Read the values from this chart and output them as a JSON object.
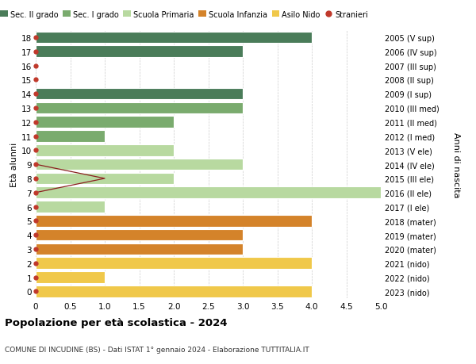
{
  "ages": [
    18,
    17,
    16,
    15,
    14,
    13,
    12,
    11,
    10,
    9,
    8,
    7,
    6,
    5,
    4,
    3,
    2,
    1,
    0
  ],
  "years_labels": [
    "2005 (V sup)",
    "2006 (IV sup)",
    "2007 (III sup)",
    "2008 (II sup)",
    "2009 (I sup)",
    "2010 (III med)",
    "2011 (II med)",
    "2012 (I med)",
    "2013 (V ele)",
    "2014 (IV ele)",
    "2015 (III ele)",
    "2016 (II ele)",
    "2017 (I ele)",
    "2018 (mater)",
    "2019 (mater)",
    "2020 (mater)",
    "2021 (nido)",
    "2022 (nido)",
    "2023 (nido)"
  ],
  "bar_values": [
    4,
    3,
    0,
    0,
    3,
    3,
    2,
    1,
    2,
    3,
    2,
    5.0,
    1,
    4,
    3,
    3,
    4,
    1,
    4
  ],
  "bar_colors": [
    "#4a7c59",
    "#4a7c59",
    "#4a7c59",
    "#4a7c59",
    "#4a7c59",
    "#7aab6e",
    "#7aab6e",
    "#7aab6e",
    "#b8d9a0",
    "#b8d9a0",
    "#b8d9a0",
    "#b8d9a0",
    "#b8d9a0",
    "#d4832a",
    "#d4832a",
    "#d4832a",
    "#f0c84a",
    "#f0c84a",
    "#f0c84a"
  ],
  "legend_labels": [
    "Sec. II grado",
    "Sec. I grado",
    "Scuola Primaria",
    "Scuola Infanzia",
    "Asilo Nido",
    "Stranieri"
  ],
  "legend_colors": [
    "#4a7c59",
    "#7aab6e",
    "#b8d9a0",
    "#d4832a",
    "#f0c84a",
    "#c0392b"
  ],
  "ylabel_left": "Età alunni",
  "ylabel_right": "Anni di nascita",
  "title": "Popolazione per età scolastica - 2024",
  "subtitle": "COMUNE DI INCUDINE (BS) - Dati ISTAT 1° gennaio 2024 - Elaborazione TUTTITALIA.IT",
  "xlim": [
    0,
    5.0
  ],
  "xticks": [
    0,
    0.5,
    1.0,
    1.5,
    2.0,
    2.5,
    3.0,
    3.5,
    4.0,
    4.5,
    5.0
  ],
  "stranieri_line_color": "#8b2020",
  "stranieri_dot_color": "#c0392b",
  "background_color": "#ffffff",
  "grid_color": "#cccccc"
}
